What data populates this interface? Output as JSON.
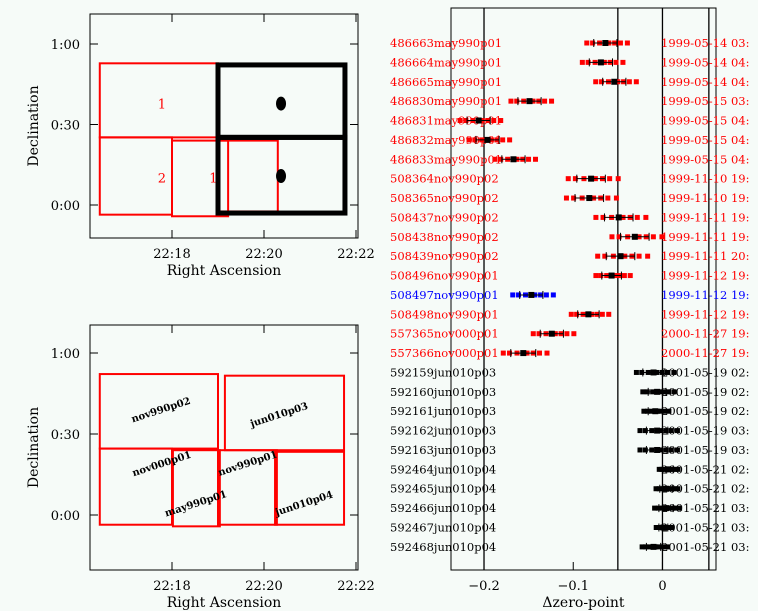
{
  "colors": {
    "footprint": "#ff0000",
    "selected": "#000000",
    "highlight": "#0000ff",
    "background": "#f6fbf8"
  },
  "chart_data": [
    {
      "type": "scatter",
      "title": "",
      "xlabel": "Right Ascension",
      "ylabel": "Declination",
      "x_ticks": [
        {
          "ra_min": 18,
          "label": "22:18"
        },
        {
          "ra_min": 20,
          "label": "22:20"
        },
        {
          "ra_min": 22,
          "label": "22:22"
        }
      ],
      "y_ticks": [
        {
          "dec": 1.0,
          "label": "1:00"
        },
        {
          "dec": 0.5,
          "label": "0:30"
        },
        {
          "dec": 0.0,
          "label": "0:00"
        }
      ],
      "footprints": [
        {
          "ra": [
            16.43,
            19.0
          ],
          "dec": [
            0.42,
            0.88
          ],
          "color": "red",
          "label": "1",
          "label_pos": [
            17.78,
            0.63
          ]
        },
        {
          "ra": [
            16.43,
            18.0
          ],
          "dec": [
            -0.06,
            0.42
          ],
          "color": "red",
          "label": "2",
          "label_pos": [
            17.78,
            0.17
          ]
        },
        {
          "ra": [
            18.0,
            19.22
          ],
          "dec": [
            -0.07,
            0.4
          ],
          "color": "red",
          "label": "1",
          "label_pos": [
            18.9,
            0.17
          ]
        },
        {
          "ra": [
            19.0,
            20.3
          ],
          "dec": [
            -0.04,
            0.4
          ],
          "color": "red",
          "label": "",
          "label_pos": [
            0,
            0
          ]
        },
        {
          "ra": [
            19.0,
            21.76
          ],
          "dec": [
            0.42,
            0.87
          ],
          "color": "black",
          "label": "",
          "label_pos": [
            0,
            0
          ]
        },
        {
          "ra": [
            19.0,
            21.76
          ],
          "dec": [
            -0.05,
            0.42
          ],
          "color": "black",
          "label": "",
          "label_pos": [
            0,
            0
          ]
        }
      ],
      "points": [
        {
          "ra": 20.37,
          "dec": 0.63
        },
        {
          "ra": 20.37,
          "dec": 0.18
        }
      ]
    },
    {
      "type": "scatter",
      "title": "",
      "xlabel": "Right Ascension",
      "ylabel": "Declination",
      "x_ticks": [
        {
          "ra_min": 18,
          "label": "22:18"
        },
        {
          "ra_min": 20,
          "label": "22:20"
        },
        {
          "ra_min": 22,
          "label": "22:22"
        }
      ],
      "y_ticks": [
        {
          "dec": 1.0,
          "label": "1:00"
        },
        {
          "dec": 0.5,
          "label": "0:30"
        },
        {
          "dec": 0.0,
          "label": "0:00"
        }
      ],
      "footprints": [
        {
          "ra": [
            16.43,
            19.0
          ],
          "dec": [
            0.41,
            0.87
          ],
          "label": "nov990p02",
          "label_pos": [
            17.78,
            0.63
          ]
        },
        {
          "ra": [
            19.15,
            21.74
          ],
          "dec": [
            0.4,
            0.86
          ],
          "label": "jun010p03",
          "label_pos": [
            20.35,
            0.6
          ]
        },
        {
          "ra": [
            16.43,
            18.0
          ],
          "dec": [
            -0.06,
            0.41
          ],
          "label": "nov000p01",
          "label_pos": [
            17.8,
            0.18
          ]
        },
        {
          "ra": [
            18.02,
            19.04
          ],
          "dec": [
            -0.07,
            0.4
          ],
          "label": "may990p01",
          "label_pos": [
            18.8,
            0.15
          ]
        },
        {
          "ra": [
            19.0,
            20.28
          ],
          "dec": [
            -0.06,
            0.4
          ],
          "label": "nov990p01",
          "label_pos": [
            18.95,
            0.17
          ]
        },
        {
          "ra": [
            20.24,
            21.74
          ],
          "dec": [
            -0.06,
            0.39
          ],
          "label": "jun010p04",
          "label_pos": [
            20.35,
            0.17
          ]
        }
      ]
    },
    {
      "type": "scatter",
      "xlabel": "Δzero-point",
      "xlim": [
        -0.237,
        0.06
      ],
      "x_ticks": [
        {
          "value": -0.2,
          "label": "−0.2"
        },
        {
          "value": -0.1,
          "label": "−0.1"
        },
        {
          "value": 0,
          "label": "0"
        }
      ],
      "reference_lines": [
        -0.2,
        -0.05,
        0,
        0.052
      ],
      "rows": [
        {
          "id": "486663may990p01",
          "date": "1999-05-14 03:",
          "value": -0.064,
          "err": 0.013,
          "color": "red"
        },
        {
          "id": "486664may990p01",
          "date": "1999-05-14 04:",
          "value": -0.069,
          "err": 0.013,
          "color": "red"
        },
        {
          "id": "486665may990p01",
          "date": "1999-05-14 04:",
          "value": -0.054,
          "err": 0.013,
          "color": "red"
        },
        {
          "id": "486830may990p01",
          "date": "1999-05-15 03:",
          "value": -0.149,
          "err": 0.013,
          "color": "red"
        },
        {
          "id": "486831may990p01",
          "date": "1999-05-15 04:",
          "value": -0.206,
          "err": 0.013,
          "color": "red"
        },
        {
          "id": "486832may990p01",
          "date": "1999-05-15 04:",
          "value": -0.196,
          "err": 0.013,
          "color": "red"
        },
        {
          "id": "486833may990p01",
          "date": "1999-05-15 04:",
          "value": -0.167,
          "err": 0.013,
          "color": "red"
        },
        {
          "id": "508364nov990p02",
          "date": "1999-11-10 19:",
          "value": -0.08,
          "err": 0.016,
          "color": "red"
        },
        {
          "id": "508365nov990p02",
          "date": "1999-11-10 19:",
          "value": -0.082,
          "err": 0.016,
          "color": "red"
        },
        {
          "id": "508437nov990p02",
          "date": "1999-11-11 19:",
          "value": -0.049,
          "err": 0.016,
          "color": "red"
        },
        {
          "id": "508438nov990p02",
          "date": "1999-11-11 19:",
          "value": -0.031,
          "err": 0.016,
          "color": "red"
        },
        {
          "id": "508439nov990p02",
          "date": "1999-11-11 20:",
          "value": -0.047,
          "err": 0.016,
          "color": "red"
        },
        {
          "id": "508496nov990p01",
          "date": "1999-11-12 19:",
          "value": -0.057,
          "err": 0.011,
          "color": "red"
        },
        {
          "id": "508497nov990p01",
          "date": "1999-11-12 19:",
          "value": -0.147,
          "err": 0.013,
          "color": "blue"
        },
        {
          "id": "508498nov990p01",
          "date": "1999-11-12 19:",
          "value": -0.083,
          "err": 0.012,
          "color": "red"
        },
        {
          "id": "557365nov000p01",
          "date": "2000-11-27 19:",
          "value": -0.124,
          "err": 0.013,
          "color": "red"
        },
        {
          "id": "557366nov000p01",
          "date": "2000-11-27 19:",
          "value": -0.156,
          "err": 0.014,
          "color": "red"
        },
        {
          "id": "592159jun010p03",
          "date": "2001-05-19 02:",
          "value": -0.01,
          "err": 0.012,
          "color": "black"
        },
        {
          "id": "592160jun010p03",
          "date": "2001-05-19 02:",
          "value": -0.006,
          "err": 0.01,
          "color": "black"
        },
        {
          "id": "592161jun010p03",
          "date": "2001-05-19 02:",
          "value": -0.008,
          "err": 0.008,
          "color": "black"
        },
        {
          "id": "592162jun010p03",
          "date": "2001-05-19 03:",
          "value": -0.006,
          "err": 0.012,
          "color": "black"
        },
        {
          "id": "592163jun010p03",
          "date": "2001-05-19 03:",
          "value": -0.006,
          "err": 0.012,
          "color": "black"
        },
        {
          "id": "592464jun010p04",
          "date": "2001-05-21 02:",
          "value": 0.006,
          "err": 0.006,
          "color": "black"
        },
        {
          "id": "592465jun010p04",
          "date": "2001-05-21 02:",
          "value": 0.004,
          "err": 0.007,
          "color": "black"
        },
        {
          "id": "592466jun010p04",
          "date": "2001-05-21 03:",
          "value": 0.004,
          "err": 0.008,
          "color": "black"
        },
        {
          "id": "592467jun010p04",
          "date": "2001-05-21 03:",
          "value": 0.001,
          "err": 0.005,
          "color": "black"
        },
        {
          "id": "592468jun010p04",
          "date": "2001-05-21 03:",
          "value": -0.01,
          "err": 0.008,
          "color": "black"
        }
      ]
    }
  ]
}
